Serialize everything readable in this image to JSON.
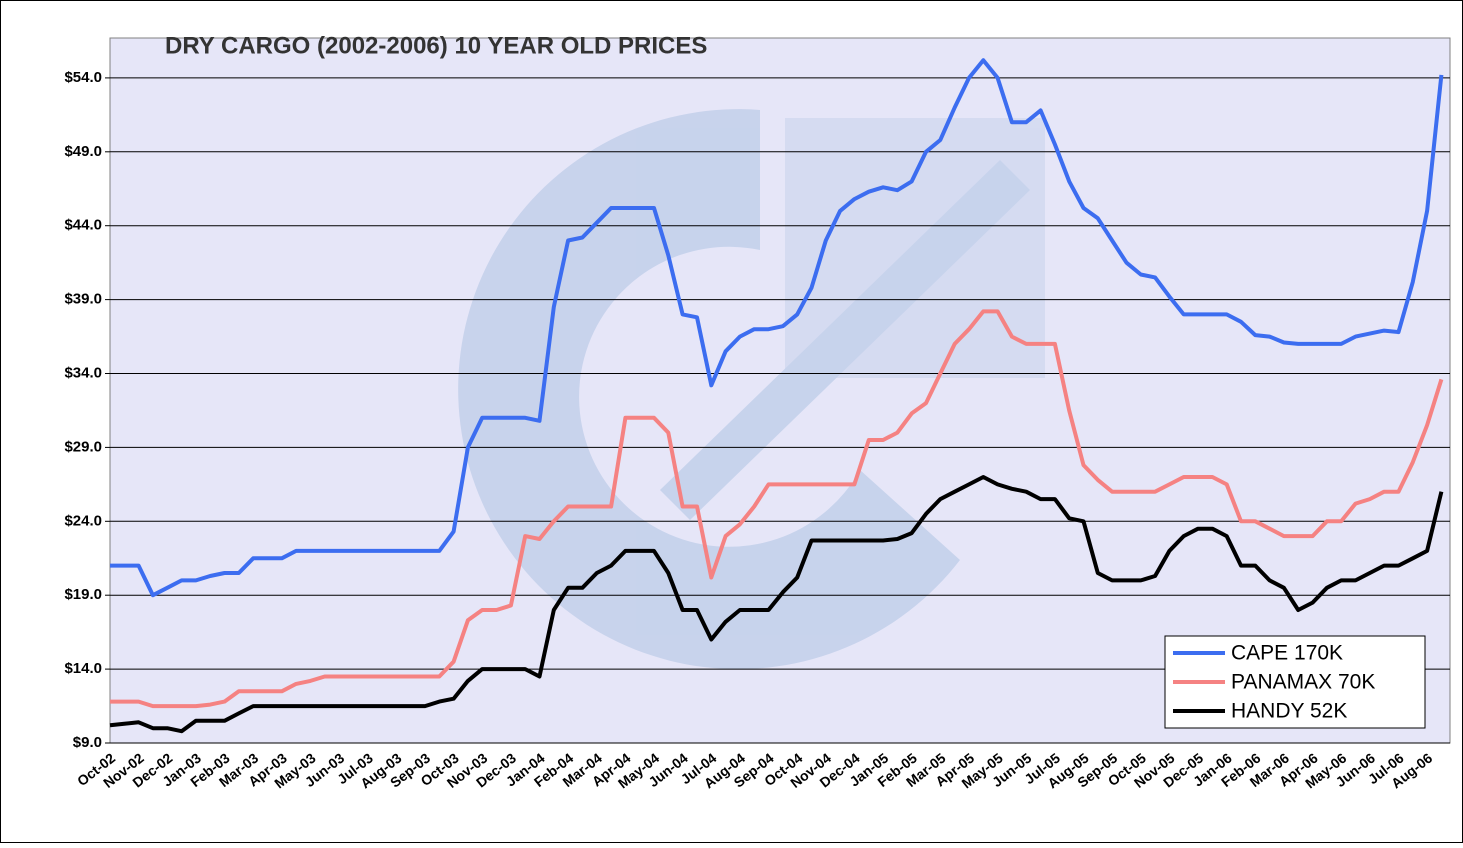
{
  "chart_data": {
    "type": "line",
    "title": "DRY CARGO (2002-2006) 10 YEAR OLD PRICES",
    "categories": [
      "Oct-02",
      null,
      "Nov-02",
      null,
      "Dec-02",
      null,
      "Jan-03",
      null,
      "Feb-03",
      null,
      "Mar-03",
      null,
      "Apr-03",
      null,
      "May-03",
      null,
      "Jun-03",
      null,
      "Jul-03",
      null,
      "Aug-03",
      null,
      "Sep-03",
      null,
      "Oct-03",
      null,
      "Nov-03",
      null,
      "Dec-03",
      null,
      "Jan-04",
      null,
      "Feb-04",
      null,
      "Mar-04",
      null,
      "Apr-04",
      null,
      "May-04",
      null,
      "Jun-04",
      null,
      "Jul-04",
      null,
      "Aug-04",
      null,
      "Sep-04",
      null,
      "Oct-04",
      null,
      "Nov-04",
      null,
      "Dec-04",
      null,
      "Jan-05",
      null,
      "Feb-05",
      null,
      "Mar-05",
      null,
      "Apr-05",
      null,
      "May-05",
      null,
      "Jun-05",
      null,
      "Jul-05",
      null,
      "Aug-05",
      null,
      "Sep-05",
      null,
      "Oct-05",
      null,
      "Nov-05",
      null,
      "Dec-05",
      null,
      "Jan-06",
      null,
      "Feb-06",
      null,
      "Mar-06",
      null,
      "Apr-06",
      null,
      "May-06",
      null,
      "Jun-06",
      null,
      "Jul-06",
      null,
      "Aug-06",
      null
    ],
    "series": [
      {
        "name": "CAPE 170K",
        "color": "#3c6df0",
        "values": [
          21,
          21,
          21,
          19,
          19.5,
          20,
          20,
          20.3,
          20.5,
          20.5,
          21.5,
          21.5,
          21.5,
          22,
          22,
          22,
          22,
          22,
          22,
          22,
          22,
          22,
          22,
          22,
          23.3,
          29,
          31,
          31,
          31,
          31,
          30.8,
          38.5,
          43,
          43.2,
          44.2,
          45.2,
          45.2,
          45.2,
          45.2,
          42,
          38,
          37.8,
          33.2,
          35.5,
          36.5,
          37,
          37,
          37.2,
          38,
          39.8,
          43,
          45,
          45.8,
          46.3,
          46.6,
          46.4,
          47,
          49,
          49.8,
          52,
          54,
          55.2,
          54,
          51,
          51,
          51.8,
          49.5,
          47,
          45.2,
          44.5,
          43,
          41.5,
          40.7,
          40.5,
          39.2,
          38,
          38,
          38,
          38,
          37.5,
          36.6,
          36.5,
          36.1,
          36,
          36,
          36,
          36,
          36.5,
          36.7,
          36.9,
          36.8,
          40.2,
          45,
          54.2
        ]
      },
      {
        "name": "PANAMAX 70K",
        "color": "#f58282",
        "values": [
          11.8,
          11.8,
          11.8,
          11.5,
          11.5,
          11.5,
          11.5,
          11.6,
          11.8,
          12.5,
          12.5,
          12.5,
          12.5,
          13,
          13.2,
          13.5,
          13.5,
          13.5,
          13.5,
          13.5,
          13.5,
          13.5,
          13.5,
          13.5,
          14.5,
          17.3,
          18,
          18,
          18.3,
          23,
          22.8,
          24,
          25,
          25,
          25,
          25,
          31,
          31,
          31,
          30,
          25,
          25,
          20.2,
          23,
          23.8,
          25,
          26.5,
          26.5,
          26.5,
          26.5,
          26.5,
          26.5,
          26.5,
          29.5,
          29.5,
          30,
          31.3,
          32,
          34,
          36,
          37,
          38.2,
          38.2,
          36.5,
          36,
          36,
          36,
          31.5,
          27.8,
          26.8,
          26,
          26,
          26,
          26,
          26.5,
          27,
          27,
          27,
          26.5,
          24,
          24,
          23.5,
          23,
          23,
          23,
          24,
          24,
          25.2,
          25.5,
          26,
          26,
          28,
          30.5,
          33.6
        ]
      },
      {
        "name": "HANDY 52K",
        "color": "#000000",
        "values": [
          10.2,
          10.3,
          10.4,
          10,
          10,
          9.8,
          10.5,
          10.5,
          10.5,
          11,
          11.5,
          11.5,
          11.5,
          11.5,
          11.5,
          11.5,
          11.5,
          11.5,
          11.5,
          11.5,
          11.5,
          11.5,
          11.5,
          11.8,
          12,
          13.2,
          14,
          14,
          14,
          14,
          13.5,
          18,
          19.5,
          19.5,
          20.5,
          21,
          22,
          22,
          22,
          20.5,
          18,
          18,
          16,
          17.2,
          18,
          18,
          18,
          19.2,
          20.2,
          22.7,
          22.7,
          22.7,
          22.7,
          22.7,
          22.7,
          22.8,
          23.2,
          24.5,
          25.5,
          26,
          26.5,
          27,
          26.5,
          26.2,
          26,
          25.5,
          25.5,
          24.2,
          24,
          20.5,
          20,
          20,
          20,
          20.3,
          22,
          23,
          23.5,
          23.5,
          23,
          21,
          21,
          20,
          19.5,
          18,
          18.5,
          19.5,
          20,
          20,
          20.5,
          21,
          21,
          21.5,
          22,
          26
        ]
      }
    ],
    "ylim": [
      9,
      56.7
    ],
    "yticks": [
      {
        "value": 9,
        "label": "$9.0"
      },
      {
        "value": 14,
        "label": "$14.0"
      },
      {
        "value": 19,
        "label": "$19.0"
      },
      {
        "value": 24,
        "label": "$24.0"
      },
      {
        "value": 29,
        "label": "$29.0"
      },
      {
        "value": 34,
        "label": "$34.0"
      },
      {
        "value": 39,
        "label": "$39.0"
      },
      {
        "value": 44,
        "label": "$44.0"
      },
      {
        "value": 49,
        "label": "$49.0"
      },
      {
        "value": 54,
        "label": "$54.0"
      }
    ],
    "grid": true,
    "legend": "lower right"
  }
}
